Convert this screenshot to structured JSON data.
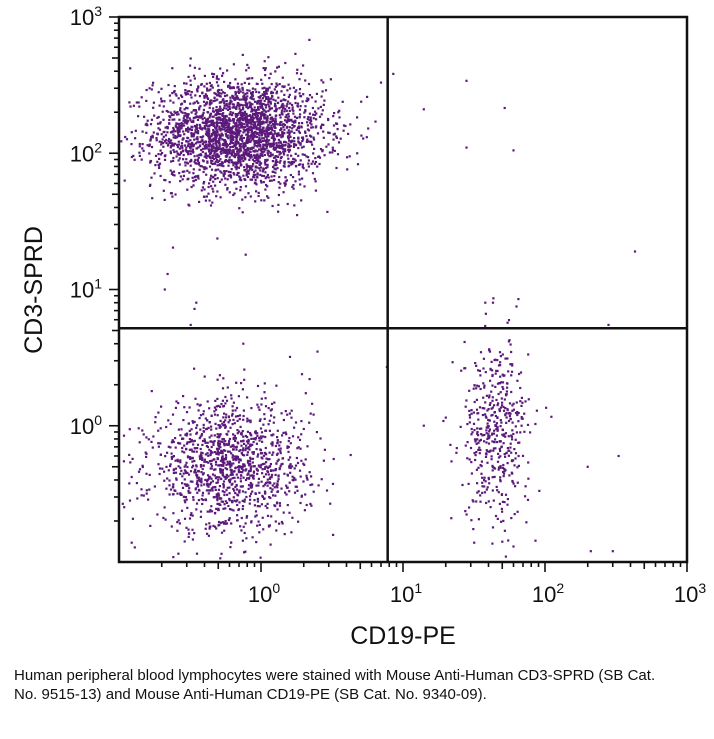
{
  "chart_data": {
    "type": "scatter",
    "scale": "log",
    "xlabel": "CD19-PE",
    "ylabel": "CD3-SPRD",
    "xlim": [
      0.1,
      1000
    ],
    "ylim": [
      0.1,
      1000
    ],
    "x_ticks": [
      {
        "base": "10",
        "exp": "0",
        "value": 1
      },
      {
        "base": "10",
        "exp": "1",
        "value": 10
      },
      {
        "base": "10",
        "exp": "2",
        "value": 100
      },
      {
        "base": "10",
        "exp": "3",
        "value": 1000
      }
    ],
    "y_ticks": [
      {
        "base": "10",
        "exp": "0",
        "value": 1
      },
      {
        "base": "10",
        "exp": "1",
        "value": 10
      },
      {
        "base": "10",
        "exp": "2",
        "value": 100
      },
      {
        "base": "10",
        "exp": "3",
        "value": 1000
      }
    ],
    "quadrant_gates": {
      "x": 7.8,
      "y": 5.2
    },
    "point_color": "#5b1a7a",
    "populations": [
      {
        "center_x": 0.7,
        "center_y": 140,
        "spread_x": 0.3,
        "spread_y": 0.2,
        "count": 2600
      },
      {
        "center_x": 0.6,
        "center_y": 0.5,
        "spread_x": 0.28,
        "spread_y": 0.24,
        "count": 1300
      },
      {
        "center_x": 45,
        "center_y": 0.9,
        "spread_x": 0.12,
        "spread_y": 0.32,
        "count": 460
      }
    ],
    "outliers": [
      [
        330,
        0.6
      ],
      [
        34,
        0.75
      ],
      [
        200,
        0.5
      ],
      [
        60,
        0.13
      ],
      [
        210,
        0.12
      ],
      [
        300,
        0.12
      ],
      [
        14,
        210
      ],
      [
        28,
        340
      ],
      [
        52,
        215
      ],
      [
        28,
        110
      ],
      [
        60,
        105
      ],
      [
        430,
        19
      ],
      [
        38,
        8
      ],
      [
        43,
        8
      ],
      [
        65,
        8.5
      ],
      [
        63,
        7.5
      ],
      [
        280,
        5.5
      ],
      [
        0.22,
        13
      ],
      [
        0.21,
        10
      ],
      [
        0.35,
        8
      ],
      [
        0.34,
        7.2
      ],
      [
        0.78,
        18
      ],
      [
        0.32,
        5.5
      ],
      [
        7,
        330
      ],
      [
        3.5,
        200
      ],
      [
        0.12,
        420
      ],
      [
        2.5,
        3.5
      ],
      [
        7.7,
        2.7
      ],
      [
        14,
        1
      ],
      [
        0.75,
        4
      ],
      [
        1.6,
        3.2
      ],
      [
        2.2,
        2.2
      ]
    ]
  },
  "caption": "Human peripheral blood lymphocytes were stained with Mouse Anti-Human CD3-SPRD (SB Cat. No. 9515-13) and Mouse Anti-Human CD19-PE (SB Cat. No. 9340-09)."
}
